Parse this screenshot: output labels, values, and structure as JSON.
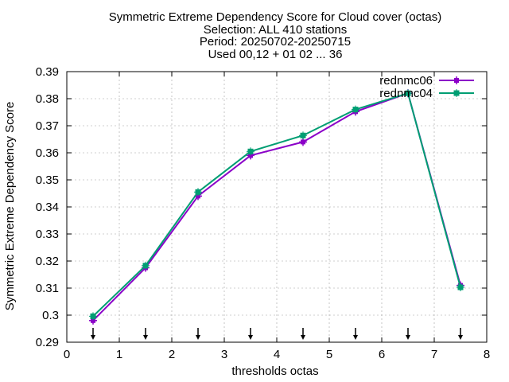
{
  "chart_data": {
    "type": "line",
    "title_lines": [
      "Symmetric Extreme Dependency Score  for Cloud cover (octas)",
      "Selection: ALL    410 stations",
      "Period: 20250702-20250715",
      "Used 00,12 + 01 02 ... 36"
    ],
    "xlabel": "thresholds octas",
    "ylabel": "Symmetric Extreme Dependency Score",
    "xlim": [
      0,
      8
    ],
    "ylim": [
      0.29,
      0.39
    ],
    "x_ticks": [
      "0",
      "1",
      "2",
      "3",
      "4",
      "5",
      "6",
      "7",
      "8"
    ],
    "y_ticks": [
      "0.29",
      "0.3",
      "0.31",
      "0.32",
      "0.33",
      "0.34",
      "0.35",
      "0.36",
      "0.37",
      "0.38",
      "0.39"
    ],
    "grid": true,
    "legend_position": "top-right",
    "x": [
      0.5,
      1.5,
      2.5,
      3.5,
      4.5,
      5.5,
      6.5,
      7.5
    ],
    "series": [
      {
        "name": "rednmc06",
        "color": "#8b00c8",
        "marker": "plus-square",
        "values": [
          0.298,
          0.3175,
          0.344,
          0.359,
          0.364,
          0.3752,
          0.382,
          0.311
        ]
      },
      {
        "name": "rednmc04",
        "color": "#009e73",
        "marker": "filled-square",
        "values": [
          0.2996,
          0.3183,
          0.3455,
          0.3605,
          0.3664,
          0.376,
          0.382,
          0.3103
        ]
      }
    ],
    "threshold_markers_x": [
      0.5,
      1.5,
      2.5,
      3.5,
      4.5,
      5.5,
      6.5,
      7.5
    ]
  }
}
